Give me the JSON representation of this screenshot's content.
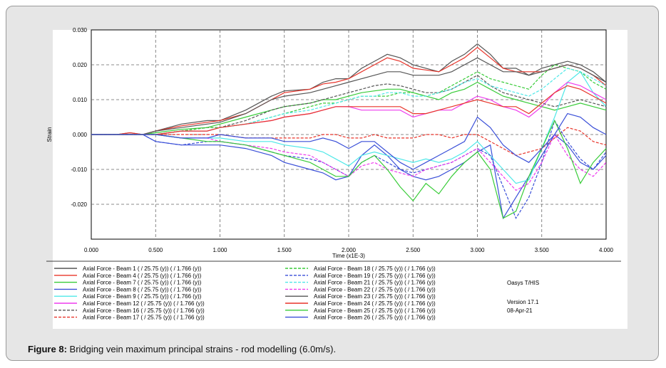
{
  "caption": {
    "label": "Figure 8:",
    "text": "Bridging vein maximum principal strains - rod modelling (6.0m/s)."
  },
  "software": {
    "name": "Oasys T/HIS",
    "version": "Version 17.1",
    "date": "08-Apr-21"
  },
  "chart_data": {
    "type": "line",
    "xlabel": "Time (x1E-3)",
    "ylabel": "Strain",
    "xlim": [
      0,
      4.0
    ],
    "ylim": [
      -0.03,
      0.03
    ],
    "xticks": [
      "0.000",
      "0.500",
      "1.000",
      "1.500",
      "2.000",
      "2.500",
      "3.000",
      "3.500",
      "4.000"
    ],
    "yticks": [
      "0.030",
      "0.020",
      "0.010",
      "0.000",
      "-0.010",
      "-0.020"
    ],
    "ytick_values": [
      0.03,
      0.02,
      0.01,
      0.0,
      -0.01,
      -0.02
    ],
    "xtick_values": [
      0,
      0.5,
      1.0,
      1.5,
      2.0,
      2.5,
      3.0,
      3.5,
      4.0
    ],
    "x": [
      0,
      0.2,
      0.3,
      0.4,
      0.5,
      0.7,
      0.9,
      1.0,
      1.2,
      1.4,
      1.5,
      1.7,
      1.8,
      1.9,
      2.0,
      2.1,
      2.2,
      2.3,
      2.4,
      2.5,
      2.6,
      2.7,
      2.8,
      2.9,
      3.0,
      3.1,
      3.2,
      3.3,
      3.4,
      3.5,
      3.6,
      3.7,
      3.8,
      3.9,
      4.0
    ],
    "series": [
      {
        "name": "Axial Force - Beam 1 ( / 25.75 (y)) ( / 1.766 (y))",
        "color": "#555555",
        "dash": "solid",
        "values": [
          0,
          0,
          0.0005,
          0,
          0.001,
          0.003,
          0.004,
          0.004,
          0.007,
          0.011,
          0.0125,
          0.013,
          0.015,
          0.016,
          0.016,
          0.019,
          0.021,
          0.023,
          0.022,
          0.02,
          0.019,
          0.018,
          0.021,
          0.023,
          0.026,
          0.023,
          0.019,
          0.019,
          0.017,
          0.019,
          0.02,
          0.021,
          0.02,
          0.018,
          0.015
        ]
      },
      {
        "name": "Axial Force - Beam 4 ( / 25.75 (y)) ( / 1.766 (y))",
        "color": "#e8342a",
        "dash": "solid",
        "values": [
          0,
          0,
          0.0005,
          0,
          0.001,
          0.0025,
          0.0035,
          0.004,
          0.006,
          0.01,
          0.012,
          0.013,
          0.0145,
          0.015,
          0.016,
          0.018,
          0.02,
          0.022,
          0.021,
          0.019,
          0.0185,
          0.018,
          0.02,
          0.022,
          0.025,
          0.022,
          0.019,
          0.018,
          0.018,
          0.018,
          0.019,
          0.02,
          0.019,
          0.017,
          0.014
        ]
      },
      {
        "name": "Axial Force - Beam 7 ( / 25.75 (y)) ( / 1.766 (y))",
        "color": "#38cc38",
        "dash": "solid",
        "values": [
          0,
          0,
          0,
          0,
          0.0005,
          0.0015,
          0.002,
          0.003,
          0.005,
          0.007,
          0.008,
          0.009,
          0.01,
          0.01,
          0.011,
          0.012,
          0.0125,
          0.013,
          0.013,
          0.012,
          0.011,
          0.01,
          0.012,
          0.013,
          0.015,
          0.013,
          0.011,
          0.01,
          0.009,
          0.008,
          0.007,
          0.008,
          0.009,
          0.008,
          0.007
        ]
      },
      {
        "name": "Axial Force - Beam 8 ( / 25.75 (y)) ( / 1.766 (y))",
        "color": "#3a4fd8",
        "dash": "solid",
        "values": [
          0,
          0,
          0,
          0,
          -0.002,
          -0.003,
          -0.003,
          -0.003,
          -0.004,
          -0.006,
          -0.008,
          -0.01,
          -0.011,
          -0.013,
          -0.012,
          -0.006,
          -0.003,
          -0.006,
          -0.01,
          -0.012,
          -0.013,
          -0.012,
          -0.01,
          -0.008,
          -0.005,
          -0.003,
          -0.024,
          -0.018,
          -0.012,
          -0.006,
          0.0,
          -0.003,
          -0.008,
          -0.01,
          -0.006
        ]
      },
      {
        "name": "Axial Force - Beam 9 ( / 25.75 (y)) ( / 1.766 (y))",
        "color": "#4fe8e8",
        "dash": "solid",
        "values": [
          0,
          0,
          0,
          0,
          0,
          -0.001,
          -0.001,
          -0.001,
          -0.002,
          -0.002,
          -0.003,
          -0.004,
          -0.005,
          -0.007,
          -0.009,
          -0.006,
          -0.005,
          -0.006,
          -0.007,
          -0.008,
          -0.007,
          -0.008,
          -0.007,
          -0.005,
          -0.002,
          -0.006,
          -0.01,
          -0.014,
          -0.013,
          -0.004,
          0.005,
          0.015,
          0.018,
          0.012,
          0.008
        ]
      },
      {
        "name": "Axial Force - Beam 12 ( / 25.75 (y)) ( / 1.766 (y))",
        "color": "#ee3cee",
        "dash": "solid",
        "values": [
          0,
          0,
          0,
          0,
          0,
          0.001,
          0.001,
          0.002,
          0.003,
          0.004,
          0.005,
          0.006,
          0.007,
          0.008,
          0.008,
          0.007,
          0.007,
          0.007,
          0.007,
          0.005,
          0.006,
          0.007,
          0.007,
          0.009,
          0.011,
          0.01,
          0.008,
          0.007,
          0.005,
          0.008,
          0.012,
          0.015,
          0.014,
          0.012,
          0.01
        ]
      },
      {
        "name": "Axial Force - Beam 16 ( / 25.75 (y)) ( / 1.766 (y))",
        "color": "#555555",
        "dash": "dash",
        "values": [
          0,
          0,
          0,
          0,
          0,
          0.001,
          0.002,
          0.002,
          0.004,
          0.007,
          0.008,
          0.009,
          0.01,
          0.011,
          0.012,
          0.013,
          0.014,
          0.0145,
          0.014,
          0.013,
          0.012,
          0.012,
          0.013,
          0.015,
          0.017,
          0.014,
          0.012,
          0.011,
          0.01,
          0.009,
          0.008,
          0.009,
          0.01,
          0.009,
          0.008
        ]
      },
      {
        "name": "Axial Force - Beam 17 ( / 25.75 (y)) ( / 1.766 (y))",
        "color": "#e8342a",
        "dash": "dash",
        "values": [
          0,
          0,
          0,
          0,
          0,
          0,
          0,
          0,
          -0.001,
          -0.001,
          -0.001,
          -0.001,
          0,
          0,
          -0.001,
          -0.001,
          0,
          -0.001,
          -0.001,
          -0.001,
          0,
          0,
          -0.001,
          0,
          0,
          -0.002,
          -0.004,
          -0.006,
          -0.005,
          -0.004,
          -0.001,
          0.002,
          0.001,
          -0.002,
          -0.003
        ]
      },
      {
        "name": "Axial Force - Beam 18 ( / 25.75 (y)) ( / 1.766 (y))",
        "color": "#38cc38",
        "dash": "dash",
        "values": [
          0,
          0,
          0,
          0,
          0,
          0.001,
          0.002,
          0.002,
          0.003,
          0.005,
          0.006,
          0.008,
          0.009,
          0.009,
          0.01,
          0.011,
          0.011,
          0.011,
          0.012,
          0.012,
          0.011,
          0.012,
          0.014,
          0.016,
          0.018,
          0.016,
          0.015,
          0.014,
          0.013,
          0.017,
          0.02,
          0.019,
          0.018,
          0.015,
          0.013
        ]
      },
      {
        "name": "Axial Force - Beam 19 ( / 25.75 (y)) ( / 1.766 (y))",
        "color": "#3a4fd8",
        "dash": "dash",
        "values": [
          0,
          0,
          0,
          0,
          -0.002,
          -0.003,
          -0.002,
          -0.002,
          -0.003,
          -0.005,
          -0.006,
          -0.007,
          -0.008,
          -0.01,
          -0.012,
          -0.008,
          -0.006,
          -0.008,
          -0.01,
          -0.011,
          -0.01,
          -0.009,
          -0.008,
          -0.006,
          -0.004,
          -0.006,
          -0.015,
          -0.024,
          -0.018,
          -0.008,
          0.004,
          -0.002,
          -0.007,
          -0.01,
          -0.005
        ]
      },
      {
        "name": "Axial Force - Beam 21 ( / 25.75 (y)) ( / 1.766 (y))",
        "color": "#4fe8e8",
        "dash": "dash",
        "values": [
          0,
          0,
          0,
          0,
          0,
          0.001,
          0.001,
          0.002,
          0.003,
          0.005,
          0.006,
          0.007,
          0.008,
          0.009,
          0.01,
          0.011,
          0.011,
          0.012,
          0.012,
          0.011,
          0.011,
          0.012,
          0.013,
          0.015,
          0.016,
          0.014,
          0.013,
          0.012,
          0.011,
          0.013,
          0.016,
          0.019,
          0.018,
          0.016,
          0.014
        ]
      },
      {
        "name": "Axial Force - Beam 22 ( / 25.75 (y)) ( / 1.766 (y))",
        "color": "#ee3cee",
        "dash": "dash",
        "values": [
          0,
          0,
          0,
          0,
          0,
          -0.001,
          -0.001,
          -0.002,
          -0.003,
          -0.004,
          -0.005,
          -0.006,
          -0.008,
          -0.01,
          -0.012,
          -0.009,
          -0.008,
          -0.01,
          -0.011,
          -0.012,
          -0.01,
          -0.009,
          -0.008,
          -0.006,
          -0.004,
          -0.008,
          -0.012,
          -0.016,
          -0.014,
          -0.008,
          0.0,
          -0.006,
          -0.01,
          -0.012,
          -0.008
        ]
      },
      {
        "name": "Axial Force - Beam 23 ( / 25.75 (y)) ( / 1.766 (y))",
        "color": "#555555",
        "dash": "solid2",
        "values": [
          0,
          0,
          0,
          0,
          0.001,
          0.002,
          0.003,
          0.0035,
          0.006,
          0.01,
          0.011,
          0.012,
          0.013,
          0.014,
          0.015,
          0.016,
          0.017,
          0.018,
          0.018,
          0.017,
          0.017,
          0.017,
          0.018,
          0.02,
          0.022,
          0.02,
          0.018,
          0.018,
          0.017,
          0.018,
          0.019,
          0.02,
          0.019,
          0.017,
          0.015
        ]
      },
      {
        "name": "Axial Force - Beam 24 ( / 25.75 (y)) ( / 1.766 (y))",
        "color": "#e8342a",
        "dash": "solid2",
        "values": [
          0,
          0,
          0,
          0,
          0,
          0.001,
          0.001,
          0.002,
          0.003,
          0.004,
          0.005,
          0.006,
          0.007,
          0.008,
          0.008,
          0.008,
          0.008,
          0.008,
          0.008,
          0.006,
          0.006,
          0.007,
          0.008,
          0.009,
          0.01,
          0.009,
          0.008,
          0.008,
          0.006,
          0.009,
          0.012,
          0.014,
          0.013,
          0.011,
          0.009
        ]
      },
      {
        "name": "Axial Force - Beam 25 ( / 25.75 (y)) ( / 1.766 (y))",
        "color": "#38cc38",
        "dash": "solid2",
        "values": [
          0,
          0,
          0,
          0,
          0,
          -0.001,
          -0.002,
          -0.002,
          -0.003,
          -0.005,
          -0.006,
          -0.008,
          -0.01,
          -0.012,
          -0.012,
          -0.008,
          -0.006,
          -0.01,
          -0.015,
          -0.019,
          -0.014,
          -0.017,
          -0.012,
          -0.008,
          -0.005,
          -0.01,
          -0.024,
          -0.022,
          -0.012,
          -0.004,
          0.004,
          -0.004,
          -0.014,
          -0.008,
          -0.004
        ]
      },
      {
        "name": "Axial Force - Beam 26 ( / 25.75 (y)) ( / 1.766 (y))",
        "color": "#3a4fd8",
        "dash": "solid2",
        "values": [
          0,
          0,
          0,
          0,
          0,
          -0.001,
          -0.001,
          0,
          -0.001,
          -0.001,
          -0.002,
          -0.002,
          -0.001,
          -0.002,
          -0.004,
          -0.002,
          -0.002,
          -0.005,
          -0.008,
          -0.01,
          -0.008,
          -0.006,
          -0.004,
          -0.002,
          0.005,
          0.002,
          -0.003,
          -0.006,
          -0.008,
          -0.004,
          0.0,
          0.006,
          0.005,
          0.002,
          0.0
        ]
      }
    ]
  }
}
